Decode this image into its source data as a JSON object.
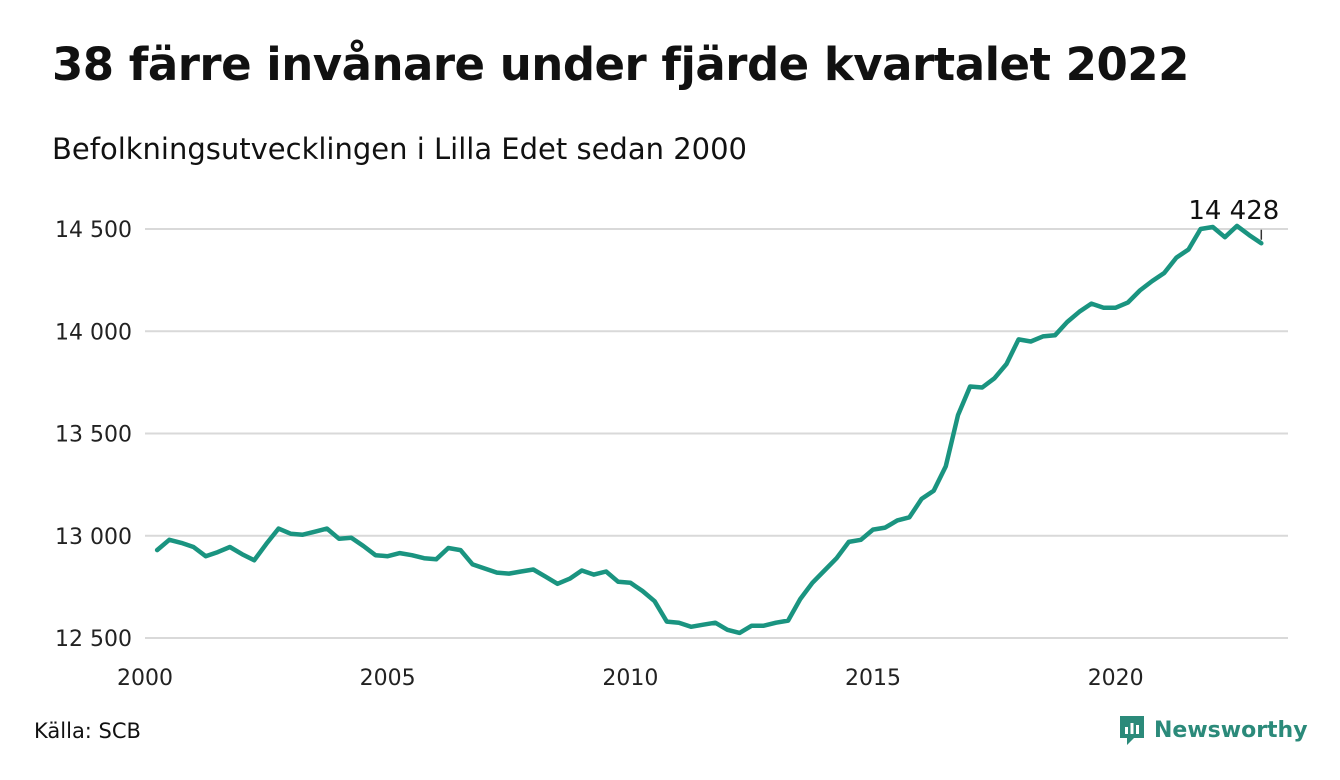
{
  "title": "38 färre invånare under fjärde kvartalet 2022",
  "subtitle": "Befolkningsutvecklingen i Lilla Edet sedan 2000",
  "source": "Källa: SCB",
  "brand": {
    "name": "Newsworthy",
    "color": "#2b8a7a",
    "icon": "newsworthy-chart-icon"
  },
  "chart_data": {
    "type": "line",
    "title": "",
    "xlabel": "",
    "ylabel": "",
    "xlim": [
      2000,
      2023.5
    ],
    "ylim": [
      12500,
      14500
    ],
    "yticks": [
      12500,
      13000,
      13500,
      14000,
      14500
    ],
    "ytick_labels": [
      "12 500",
      "13 000",
      "13 500",
      "14 000",
      "14 500"
    ],
    "xticks": [
      2000,
      2005,
      2010,
      2015,
      2020
    ],
    "xtick_labels": [
      "2000",
      "2005",
      "2010",
      "2015",
      "2020"
    ],
    "grid": "horizontal",
    "line_color": "#1a9480",
    "annotation": {
      "text": "14 428",
      "x": 2023.0,
      "y": 14428
    },
    "series": [
      {
        "x": [
          2000.25,
          2000.5,
          2000.75,
          2001.0,
          2001.25,
          2001.5,
          2001.75,
          2002.0,
          2002.25,
          2002.5,
          2002.75,
          2003.0,
          2003.25,
          2003.5,
          2003.75,
          2004.0,
          2004.25,
          2004.5,
          2004.75,
          2005.0,
          2005.25,
          2005.5,
          2005.75,
          2006.0,
          2006.25,
          2006.5,
          2006.75,
          2007.0,
          2007.25,
          2007.5,
          2007.75,
          2008.0,
          2008.25,
          2008.5,
          2008.75,
          2009.0,
          2009.25,
          2009.5,
          2009.75,
          2010.0,
          2010.25,
          2010.5,
          2010.75,
          2011.0,
          2011.25,
          2011.5,
          2011.75,
          2012.0,
          2012.25,
          2012.5,
          2012.75,
          2013.0,
          2013.25,
          2013.5,
          2013.75,
          2014.0,
          2014.25,
          2014.5,
          2014.75,
          2015.0,
          2015.25,
          2015.5,
          2015.75,
          2016.0,
          2016.25,
          2016.5,
          2016.75,
          2017.0,
          2017.25,
          2017.5,
          2017.75,
          2018.0,
          2018.25,
          2018.5,
          2018.75,
          2019.0,
          2019.25,
          2019.5,
          2019.75,
          2020.0,
          2020.25,
          2020.5,
          2020.75,
          2021.0,
          2021.25,
          2021.5,
          2021.75,
          2022.0,
          2022.25,
          2022.5,
          2022.75,
          2023.0
        ],
        "values": [
          12930,
          12980,
          12965,
          12945,
          12900,
          12920,
          12945,
          12910,
          12880,
          12960,
          13035,
          13010,
          13005,
          13020,
          13035,
          12985,
          12990,
          12950,
          12905,
          12900,
          12915,
          12905,
          12890,
          12885,
          12940,
          12930,
          12860,
          12840,
          12820,
          12815,
          12825,
          12835,
          12800,
          12765,
          12790,
          12830,
          12810,
          12825,
          12775,
          12770,
          12730,
          12680,
          12580,
          12575,
          12555,
          12565,
          12575,
          12540,
          12525,
          12560,
          12560,
          12575,
          12585,
          12690,
          12770,
          12830,
          12890,
          12970,
          12980,
          13030,
          13040,
          13075,
          13090,
          13180,
          13220,
          13340,
          13590,
          13730,
          13725,
          13770,
          13840,
          13960,
          13950,
          13975,
          13980,
          14045,
          14095,
          14135,
          14115,
          14115,
          14140,
          14200,
          14245,
          14285,
          14360,
          14400,
          14500,
          14510,
          14460,
          14515,
          14470,
          14430
        ]
      }
    ]
  }
}
